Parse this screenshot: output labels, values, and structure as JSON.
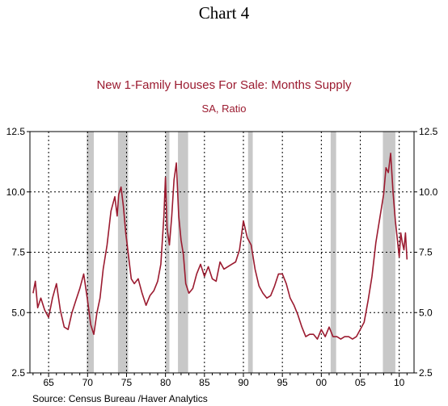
{
  "header": {
    "chart_title": "Chart 4",
    "title": "New 1-Family Houses For Sale: Months Supply",
    "unit": "SA, Ratio"
  },
  "footer": {
    "source": "Source:  Census Bureau /Haver Analytics"
  },
  "colors": {
    "line": "#9b1b30",
    "recession": "#c8c8c8",
    "grid": "#000000"
  },
  "chart_data": {
    "type": "line",
    "title": "New 1-Family Houses For Sale: Months Supply",
    "subtitle": "SA, Ratio",
    "xlim": [
      1962.6,
      2011.9
    ],
    "ylim": [
      2.5,
      12.5
    ],
    "y_ticks": [
      2.5,
      5.0,
      7.5,
      10.0,
      12.5
    ],
    "y_tick_labels": [
      "2.5",
      "5.0",
      "7.5",
      "10.0",
      "12.5"
    ],
    "x_ticks": [
      1965,
      1970,
      1975,
      1980,
      1985,
      1990,
      1995,
      2000,
      2005,
      2010
    ],
    "x_tick_labels": [
      "65",
      "70",
      "75",
      "80",
      "85",
      "90",
      "95",
      "00",
      "05",
      "10"
    ],
    "grid": true,
    "recessions": [
      [
        1969.9,
        1970.8
      ],
      [
        1973.9,
        1975.2
      ],
      [
        1980.0,
        1980.5
      ],
      [
        1981.6,
        1982.9
      ],
      [
        1990.6,
        1991.2
      ],
      [
        2001.2,
        2001.9
      ],
      [
        2007.9,
        2009.5
      ]
    ],
    "series": [
      {
        "x": [
          1963.0,
          1963.3,
          1963.6,
          1964.0,
          1964.5,
          1965.0,
          1965.5,
          1966.0,
          1966.5,
          1967.0,
          1967.5,
          1968.0,
          1968.5,
          1969.0,
          1969.5,
          1970.0,
          1970.4,
          1970.8,
          1971.2,
          1971.6,
          1972.0,
          1972.5,
          1973.0,
          1973.5,
          1973.8,
          1974.0,
          1974.3,
          1974.6,
          1974.9,
          1975.2,
          1975.6,
          1976.0,
          1976.5,
          1977.0,
          1977.5,
          1978.0,
          1978.5,
          1979.0,
          1979.4,
          1979.8,
          1980.0,
          1980.2,
          1980.5,
          1980.8,
          1981.1,
          1981.4,
          1981.7,
          1982.0,
          1982.3,
          1982.6,
          1983.0,
          1983.5,
          1984.0,
          1984.5,
          1985.0,
          1985.5,
          1986.0,
          1986.5,
          1987.0,
          1987.5,
          1988.0,
          1988.5,
          1989.0,
          1989.5,
          1990.0,
          1990.5,
          1991.0,
          1991.5,
          1992.0,
          1992.5,
          1993.0,
          1993.5,
          1994.0,
          1994.5,
          1995.0,
          1995.5,
          1996.0,
          1996.5,
          1997.0,
          1997.5,
          1998.0,
          1998.5,
          1999.0,
          1999.5,
          2000.0,
          2000.5,
          2001.0,
          2001.5,
          2002.0,
          2002.5,
          2003.0,
          2003.5,
          2004.0,
          2004.5,
          2005.0,
          2005.5,
          2006.0,
          2006.5,
          2007.0,
          2007.5,
          2008.0,
          2008.3,
          2008.6,
          2008.9,
          2009.2,
          2009.5,
          2009.8,
          2010.0,
          2010.2,
          2010.4,
          2010.6,
          2010.8,
          2011.0
        ],
        "y": [
          5.8,
          6.3,
          5.2,
          5.6,
          5.1,
          4.8,
          5.6,
          6.2,
          5.1,
          4.4,
          4.3,
          5.0,
          5.5,
          6.0,
          6.6,
          5.5,
          4.5,
          4.1,
          5.0,
          5.6,
          6.8,
          7.8,
          9.2,
          9.8,
          9.0,
          9.9,
          10.2,
          9.4,
          8.3,
          7.5,
          6.4,
          6.2,
          6.4,
          5.8,
          5.3,
          5.7,
          5.9,
          6.3,
          7.0,
          9.0,
          10.6,
          8.5,
          7.8,
          9.0,
          10.5,
          11.2,
          9.0,
          8.0,
          7.4,
          6.2,
          5.8,
          6.0,
          6.6,
          7.0,
          6.5,
          6.9,
          6.4,
          6.3,
          7.1,
          6.8,
          6.9,
          7.0,
          7.1,
          7.6,
          8.8,
          8.1,
          7.8,
          6.8,
          6.1,
          5.8,
          5.6,
          5.7,
          6.1,
          6.6,
          6.6,
          6.2,
          5.6,
          5.3,
          4.9,
          4.4,
          4.0,
          4.1,
          4.1,
          3.9,
          4.3,
          4.0,
          4.4,
          4.0,
          4.0,
          3.9,
          4.0,
          4.0,
          3.9,
          4.0,
          4.3,
          4.6,
          5.5,
          6.5,
          7.9,
          8.9,
          9.9,
          11.0,
          10.8,
          11.6,
          10.0,
          8.8,
          7.9,
          7.3,
          8.3,
          7.9,
          7.6,
          8.3,
          7.2
        ]
      }
    ]
  }
}
